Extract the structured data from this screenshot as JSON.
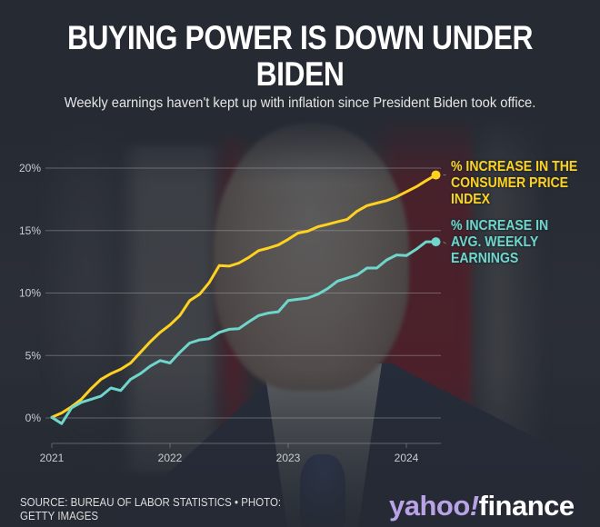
{
  "header": {
    "title": "BUYING POWER IS DOWN UNDER BIDEN",
    "subtitle": "Weekly earnings haven't kept up with inflation since President Biden took office."
  },
  "footer": {
    "source": "SOURCE: BUREAU OF LABOR STATISTICS • PHOTO: GETTY IMAGES",
    "logo_part1": "yahoo",
    "logo_part2": "!",
    "logo_part3": "finance"
  },
  "colors": {
    "cpi": "#ffd21f",
    "earnings": "#6fd6cb",
    "background": "#252a33",
    "logo_purple": "#b9a2e6"
  },
  "chart_data": {
    "type": "line",
    "title": "BUYING POWER IS DOWN UNDER BIDEN",
    "subtitle": "Weekly earnings haven't kept up with inflation since President Biden took office.",
    "xlabel": "",
    "ylabel": "",
    "x_start": "2021-01",
    "x_step": "month",
    "x_ticks": [
      {
        "label": "2021",
        "month_index": 0
      },
      {
        "label": "2022",
        "month_index": 12
      },
      {
        "label": "2023",
        "month_index": 24
      },
      {
        "label": "2024",
        "month_index": 36
      }
    ],
    "xlim_months": [
      0,
      40
    ],
    "y_ticks": [
      {
        "label": "0%",
        "value": 0
      },
      {
        "label": "5%",
        "value": 5
      },
      {
        "label": "10%",
        "value": 10
      },
      {
        "label": "15%",
        "value": 15
      },
      {
        "label": "20%",
        "value": 20
      }
    ],
    "ylim": [
      0,
      20
    ],
    "grid": true,
    "legend_placement": "right (end-of-line labels)",
    "series": [
      {
        "name": "% INCREASE IN THE CONSUMER PRICE INDEX",
        "color": "#ffd21f",
        "values": [
          0.05,
          0.4,
          0.9,
          1.5,
          2.35,
          3.1,
          3.55,
          3.9,
          4.4,
          5.25,
          6.1,
          6.85,
          7.45,
          8.2,
          9.4,
          9.9,
          10.85,
          12.2,
          12.15,
          12.4,
          12.85,
          13.4,
          13.6,
          13.85,
          14.3,
          14.8,
          14.95,
          15.3,
          15.5,
          15.7,
          15.9,
          16.55,
          17.0,
          17.2,
          17.4,
          17.7,
          18.1,
          18.5,
          19.0,
          19.45
        ]
      },
      {
        "name": "% INCREASE IN AVG. WEEKLY EARNINGS",
        "color": "#6fd6cb",
        "values": [
          0.05,
          -0.45,
          0.8,
          1.25,
          1.5,
          1.75,
          2.4,
          2.2,
          3.1,
          3.55,
          4.15,
          4.6,
          4.4,
          5.25,
          6.0,
          6.25,
          6.35,
          6.85,
          7.1,
          7.15,
          7.7,
          8.2,
          8.4,
          8.5,
          9.4,
          9.5,
          9.6,
          9.9,
          10.35,
          10.95,
          11.2,
          11.45,
          12.0,
          12.0,
          12.65,
          13.05,
          13.0,
          13.5,
          14.1,
          14.1
        ]
      }
    ]
  }
}
